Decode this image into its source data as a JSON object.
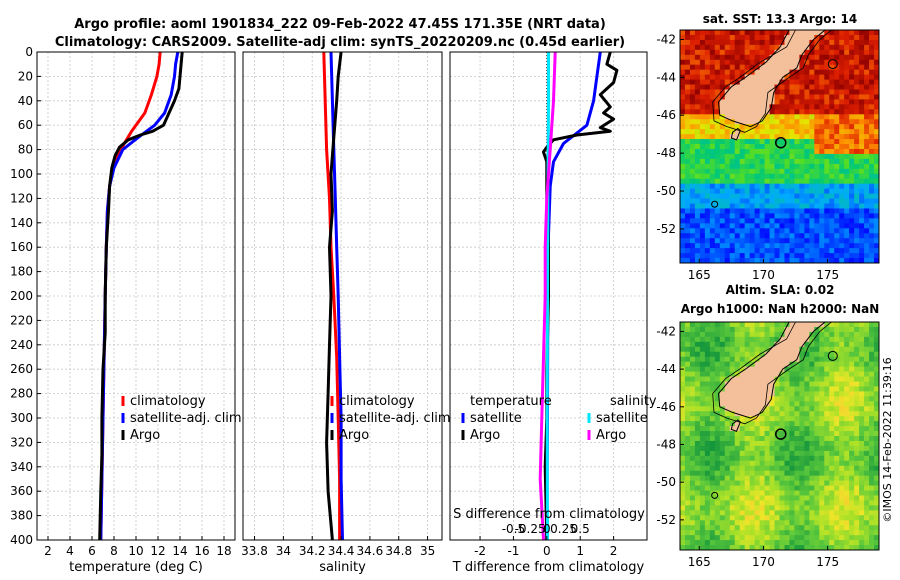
{
  "header": {
    "title_line1": "Argo profile: aoml 1901834_222 09-Feb-2022 47.45S 171.35E (NRT data)",
    "title_line2": "Climatology: CARS2009. Satellite-adj clim: synTS_20220209.nc (0.45d earlier)"
  },
  "colors": {
    "climatology": "#ff0000",
    "satellite": "#0000ff",
    "argo": "#000000",
    "sal_sat": "#00e5ff",
    "sal_argo": "#ff00ff",
    "land": "#f4c09c"
  },
  "chart_data": [
    {
      "type": "line",
      "id": "temperature",
      "xlabel": "temperature (deg C)",
      "xlim": [
        1,
        19
      ],
      "ylim": [
        0,
        400
      ],
      "xticks": [
        2,
        4,
        6,
        8,
        10,
        12,
        14,
        16,
        18
      ],
      "yticks": [
        0,
        20,
        40,
        60,
        80,
        100,
        120,
        140,
        160,
        180,
        200,
        220,
        240,
        260,
        280,
        300,
        320,
        340,
        360,
        380,
        400
      ],
      "grid": true,
      "legend_position": "lower-right",
      "series": [
        {
          "name": "climatology",
          "color": "#ff0000",
          "points": [
            [
              12.2,
              0
            ],
            [
              12.1,
              10
            ],
            [
              11.9,
              20
            ],
            [
              11.4,
              35
            ],
            [
              10.8,
              50
            ],
            [
              9.6,
              65
            ],
            [
              8.6,
              80
            ],
            [
              7.9,
              95
            ],
            [
              7.6,
              110
            ],
            [
              7.4,
              130
            ],
            [
              7.3,
              160
            ],
            [
              7.2,
              200
            ],
            [
              7.1,
              250
            ],
            [
              7.0,
              300
            ],
            [
              6.9,
              350
            ],
            [
              6.8,
              400
            ]
          ]
        },
        {
          "name": "satellite-adj. clim",
          "color": "#0000ff",
          "points": [
            [
              13.8,
              0
            ],
            [
              13.6,
              10
            ],
            [
              13.5,
              20
            ],
            [
              13.2,
              35
            ],
            [
              12.6,
              50
            ],
            [
              11.7,
              60
            ],
            [
              10.2,
              70
            ],
            [
              8.8,
              80
            ],
            [
              8.0,
              95
            ],
            [
              7.6,
              110
            ],
            [
              7.4,
              130
            ],
            [
              7.3,
              160
            ],
            [
              7.2,
              200
            ],
            [
              7.1,
              250
            ],
            [
              7.0,
              300
            ],
            [
              6.9,
              350
            ],
            [
              6.8,
              400
            ]
          ]
        },
        {
          "name": "Argo",
          "color": "#000000",
          "points": [
            [
              14.2,
              0
            ],
            [
              14.1,
              10
            ],
            [
              14.0,
              20
            ],
            [
              13.9,
              30
            ],
            [
              13.5,
              40
            ],
            [
              13.0,
              50
            ],
            [
              12.5,
              60
            ],
            [
              11.5,
              65
            ],
            [
              10.4,
              68
            ],
            [
              9.3,
              72
            ],
            [
              8.5,
              78
            ],
            [
              8.1,
              85
            ],
            [
              7.8,
              95
            ],
            [
              7.6,
              110
            ],
            [
              7.5,
              130
            ],
            [
              7.3,
              160
            ],
            [
              7.2,
              200
            ],
            [
              7.2,
              230
            ],
            [
              7.0,
              260
            ],
            [
              6.9,
              300
            ],
            [
              6.9,
              330
            ],
            [
              6.8,
              360
            ],
            [
              6.7,
              400
            ]
          ]
        }
      ]
    },
    {
      "type": "line",
      "id": "salinity",
      "xlabel": "salinity",
      "xlim": [
        33.72,
        35.1
      ],
      "ylim": [
        0,
        400
      ],
      "xticks": [
        33.8,
        34,
        34.2,
        34.4,
        34.6,
        34.8,
        35
      ],
      "grid": true,
      "legend_position": "lower-right",
      "series": [
        {
          "name": "climatology",
          "color": "#ff0000",
          "points": [
            [
              34.28,
              0
            ],
            [
              34.29,
              40
            ],
            [
              34.3,
              80
            ],
            [
              34.32,
              120
            ],
            [
              34.33,
              160
            ],
            [
              34.35,
              200
            ],
            [
              34.37,
              250
            ],
            [
              34.38,
              300
            ],
            [
              34.39,
              350
            ],
            [
              34.39,
              400
            ]
          ]
        },
        {
          "name": "satellite-adj. clim",
          "color": "#0000ff",
          "points": [
            [
              34.33,
              0
            ],
            [
              34.34,
              40
            ],
            [
              34.35,
              80
            ],
            [
              34.36,
              120
            ],
            [
              34.37,
              160
            ],
            [
              34.38,
              200
            ],
            [
              34.39,
              250
            ],
            [
              34.4,
              300
            ],
            [
              34.4,
              350
            ],
            [
              34.41,
              400
            ]
          ]
        },
        {
          "name": "Argo",
          "color": "#000000",
          "points": [
            [
              34.4,
              0
            ],
            [
              34.38,
              20
            ],
            [
              34.37,
              40
            ],
            [
              34.35,
              70
            ],
            [
              34.33,
              100
            ],
            [
              34.34,
              130
            ],
            [
              34.32,
              160
            ],
            [
              34.33,
              200
            ],
            [
              34.32,
              240
            ],
            [
              34.31,
              280
            ],
            [
              34.3,
              320
            ],
            [
              34.31,
              360
            ],
            [
              34.34,
              400
            ]
          ]
        }
      ]
    },
    {
      "type": "line",
      "id": "difference",
      "xlabel": "T difference from climatology",
      "top_xlabel": "S difference from climatology",
      "xlim": [
        -2.9,
        3.0
      ],
      "ylim": [
        0,
        400
      ],
      "xticks": [
        -2,
        -1,
        0,
        1,
        2
      ],
      "top_ticks": [
        {
          "pos": -1,
          "label": "-0.5"
        },
        {
          "pos": -0.5,
          "label": "-0.25"
        },
        {
          "pos": 0,
          "label": "0"
        },
        {
          "pos": 0.5,
          "label": "0.25"
        },
        {
          "pos": 1,
          "label": "0.5"
        }
      ],
      "grid": true,
      "legend_temperature_title": "temperature",
      "legend_salinity_title": "salinity",
      "series": [
        {
          "name": "satellite",
          "group": "temperature",
          "color": "#0000ff",
          "points": [
            [
              1.6,
              0
            ],
            [
              1.5,
              20
            ],
            [
              1.4,
              40
            ],
            [
              1.2,
              60
            ],
            [
              0.5,
              75
            ],
            [
              0.2,
              90
            ],
            [
              0.1,
              110
            ],
            [
              0.05,
              150
            ],
            [
              0.03,
              200
            ],
            [
              0.02,
              300
            ],
            [
              0.0,
              400
            ]
          ]
        },
        {
          "name": "Argo",
          "group": "temperature",
          "color": "#000000",
          "points": [
            [
              1.9,
              0
            ],
            [
              1.8,
              10
            ],
            [
              2.1,
              15
            ],
            [
              2.0,
              25
            ],
            [
              1.6,
              35
            ],
            [
              1.9,
              45
            ],
            [
              1.7,
              50
            ],
            [
              2.0,
              55
            ],
            [
              1.6,
              62
            ],
            [
              1.9,
              65
            ],
            [
              0.9,
              68
            ],
            [
              0.2,
              72
            ],
            [
              0.0,
              78
            ],
            [
              -0.1,
              82
            ],
            [
              0.0,
              90
            ],
            [
              0.0,
              120
            ],
            [
              0.05,
              160
            ],
            [
              0.05,
              200
            ],
            [
              0.0,
              260
            ],
            [
              0.0,
              300
            ],
            [
              -0.05,
              340
            ],
            [
              0.0,
              400
            ]
          ]
        },
        {
          "name": "satellite",
          "group": "salinity",
          "color": "#00e5ff",
          "points": [
            [
              0.05,
              0
            ],
            [
              0.05,
              40
            ],
            [
              0.04,
              80
            ],
            [
              0.03,
              120
            ],
            [
              0.02,
              200
            ],
            [
              0.01,
              300
            ],
            [
              0.02,
              400
            ]
          ]
        },
        {
          "name": "Argo",
          "group": "salinity",
          "color": "#ff00ff",
          "points": [
            [
              0.25,
              0
            ],
            [
              0.2,
              40
            ],
            [
              0.1,
              80
            ],
            [
              0.0,
              120
            ],
            [
              -0.05,
              160
            ],
            [
              -0.05,
              200
            ],
            [
              -0.1,
              250
            ],
            [
              -0.15,
              300
            ],
            [
              -0.2,
              350
            ],
            [
              -0.1,
              400
            ]
          ]
        }
      ]
    },
    {
      "type": "heatmap",
      "id": "sst_map",
      "title": "sat. SST: 13.3 Argo: 14",
      "xlim": [
        163.5,
        179.0
      ],
      "ylim": [
        -53.8,
        -41.5
      ],
      "xticks": [
        165,
        170,
        175
      ],
      "yticks": [
        -42,
        -44,
        -46,
        -48,
        -50,
        -52
      ],
      "marker": [
        171.35,
        -47.45
      ]
    },
    {
      "type": "heatmap",
      "id": "sla_map",
      "title": "Altim. SLA: 0.02",
      "subtitle": "Argo h1000: NaN h2000: NaN",
      "xlim": [
        163.5,
        179.0
      ],
      "ylim": [
        -53.6,
        -41.5
      ],
      "xticks": [
        165,
        170,
        175
      ],
      "yticks": [
        -42,
        -44,
        -46,
        -48,
        -50,
        -52
      ],
      "marker": [
        171.35,
        -47.45
      ]
    }
  ],
  "footer": {
    "credit": "©IMOS 14-Feb-2022 11:39:16"
  }
}
